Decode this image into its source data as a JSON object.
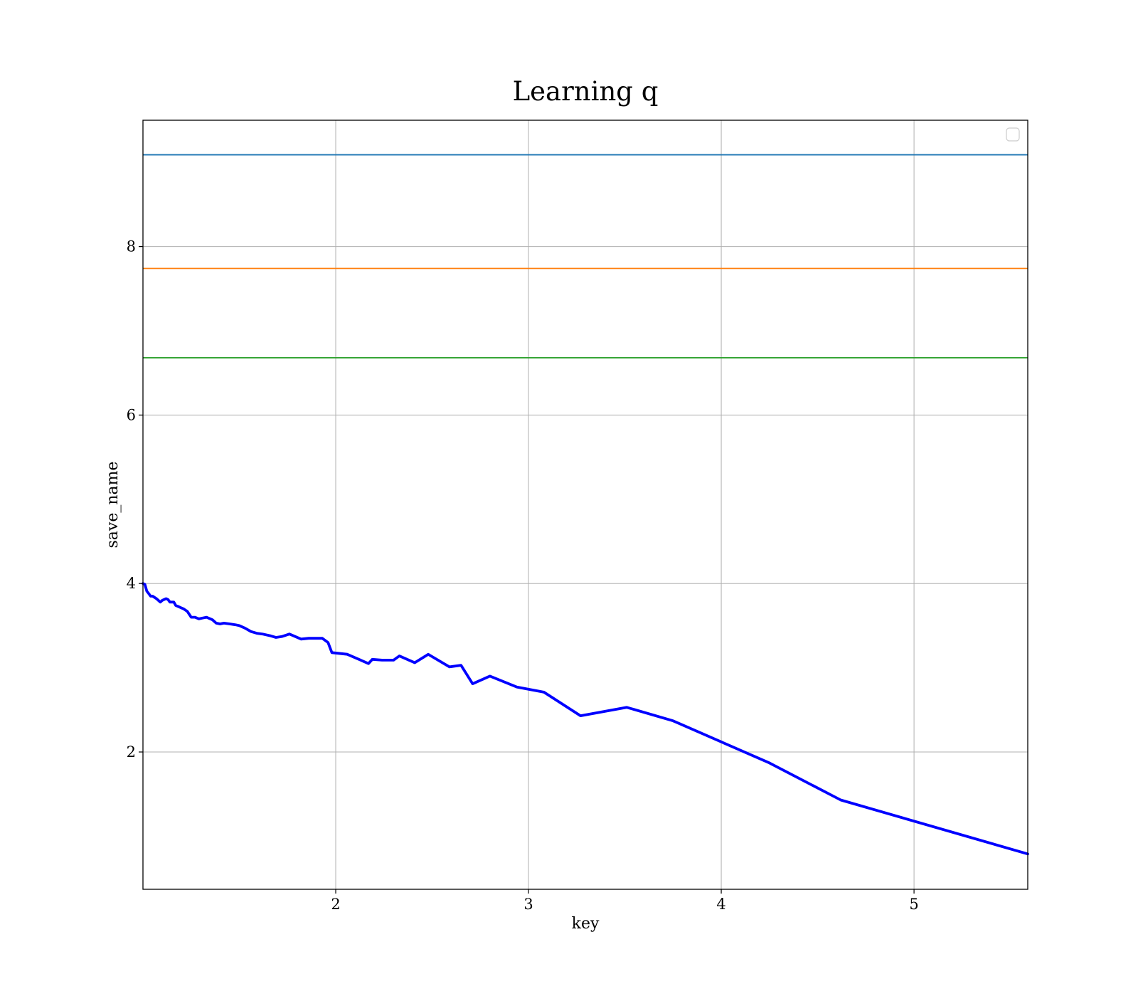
{
  "chart_data": {
    "type": "line",
    "title": "Learning q",
    "xlabel": "key",
    "ylabel": "save_name",
    "xlim": [
      1.0,
      5.59
    ],
    "ylim": [
      0.37,
      9.5
    ],
    "grid": true,
    "legend": {
      "position": "top-right",
      "entries": []
    },
    "x_ticks": [
      {
        "value": 2,
        "label": "2"
      },
      {
        "value": 3,
        "label": "3"
      },
      {
        "value": 4,
        "label": "4"
      },
      {
        "value": 5,
        "label": "5"
      }
    ],
    "y_ticks": [
      {
        "value": 2,
        "label": "2"
      },
      {
        "value": 4,
        "label": "4"
      },
      {
        "value": 6,
        "label": "6"
      },
      {
        "value": 8,
        "label": "8"
      }
    ],
    "hlines": [
      {
        "y": 9.09,
        "color": "#1f77b4"
      },
      {
        "y": 7.74,
        "color": "#ff7f0e"
      },
      {
        "y": 6.68,
        "color": "#2ca02c"
      }
    ],
    "series": [
      {
        "color": "#0000ff",
        "x": [
          1.0,
          1.01,
          1.02,
          1.03,
          1.04,
          1.05,
          1.07,
          1.08,
          1.09,
          1.1,
          1.12,
          1.13,
          1.14,
          1.16,
          1.17,
          1.19,
          1.21,
          1.23,
          1.25,
          1.27,
          1.29,
          1.31,
          1.33,
          1.36,
          1.38,
          1.4,
          1.42,
          1.45,
          1.48,
          1.5,
          1.53,
          1.56,
          1.59,
          1.62,
          1.66,
          1.69,
          1.72,
          1.76,
          1.82,
          1.86,
          1.93,
          1.96,
          1.98,
          2.06,
          2.17,
          2.19,
          2.24,
          2.3,
          2.33,
          2.41,
          2.48,
          2.59,
          2.65,
          2.71,
          2.8,
          2.94,
          3.08,
          3.27,
          3.51,
          3.75,
          4.25,
          4.62,
          5.59
        ],
        "y": [
          4.0,
          3.99,
          3.91,
          3.88,
          3.85,
          3.85,
          3.82,
          3.8,
          3.78,
          3.8,
          3.82,
          3.81,
          3.78,
          3.78,
          3.74,
          3.72,
          3.7,
          3.67,
          3.6,
          3.6,
          3.58,
          3.59,
          3.6,
          3.57,
          3.53,
          3.52,
          3.53,
          3.52,
          3.51,
          3.5,
          3.47,
          3.43,
          3.41,
          3.4,
          3.38,
          3.36,
          3.37,
          3.4,
          3.34,
          3.35,
          3.35,
          3.3,
          3.18,
          3.16,
          3.05,
          3.1,
          3.09,
          3.09,
          3.14,
          3.06,
          3.16,
          3.01,
          3.03,
          2.81,
          2.9,
          2.77,
          2.71,
          2.43,
          2.53,
          2.37,
          1.87,
          1.43,
          0.79
        ]
      }
    ]
  }
}
